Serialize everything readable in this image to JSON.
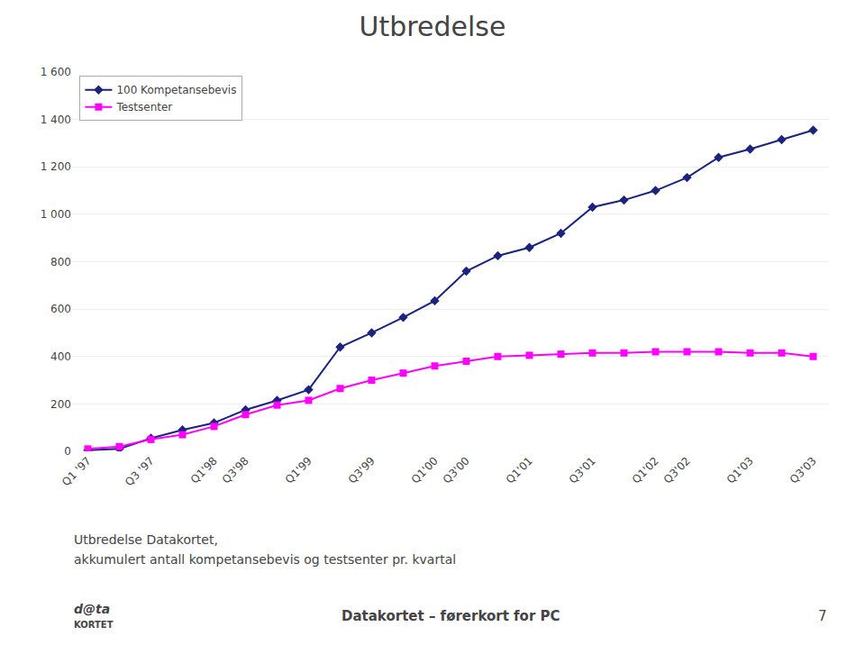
{
  "chart_data": {
    "type": "line",
    "title": "Utbredelse",
    "categories": [
      "Q1 '97",
      null,
      "Q3 '97",
      null,
      "Q1'98",
      "Q3'98",
      null,
      "Q1'99",
      null,
      "Q3'99",
      null,
      "Q1'00",
      "Q3'00",
      null,
      "Q1'01",
      null,
      "Q3'01",
      null,
      "Q1'02",
      "Q3'02",
      null,
      "Q1'03",
      null,
      "Q3'03"
    ],
    "series": [
      {
        "name": "100 Kompetansebevis",
        "color": "#1a237e",
        "marker": "diamond",
        "values": [
          5,
          10,
          55,
          90,
          120,
          175,
          215,
          260,
          440,
          500,
          565,
          635,
          760,
          825,
          860,
          920,
          1030,
          1060,
          1100,
          1155,
          1240,
          1275,
          1315,
          1355
        ]
      },
      {
        "name": "Testsenter",
        "color": "#ff00ff",
        "marker": "square",
        "values": [
          10,
          20,
          50,
          70,
          105,
          155,
          195,
          215,
          265,
          300,
          330,
          360,
          380,
          400,
          405,
          410,
          415,
          415,
          420,
          420,
          420,
          415,
          415,
          400
        ]
      }
    ],
    "ylim": [
      0,
      1600
    ],
    "yticks": [
      0,
      200,
      400,
      600,
      800,
      {
        "value": 1000,
        "label": "1 000"
      },
      {
        "value": 1200,
        "label": "1 200"
      },
      {
        "value": 1400,
        "label": "1 400"
      },
      {
        "value": 1600,
        "label": "1 600"
      }
    ],
    "grid": true,
    "legend": "upper left",
    "annotations": [
      "Utbredelse Datakortet,",
      "akkumulert antall kompetansebevis og testsenter pr. kvartal",
      "d@ta",
      "KORTET",
      "Datakortet – førerkort for PC",
      "7"
    ]
  }
}
